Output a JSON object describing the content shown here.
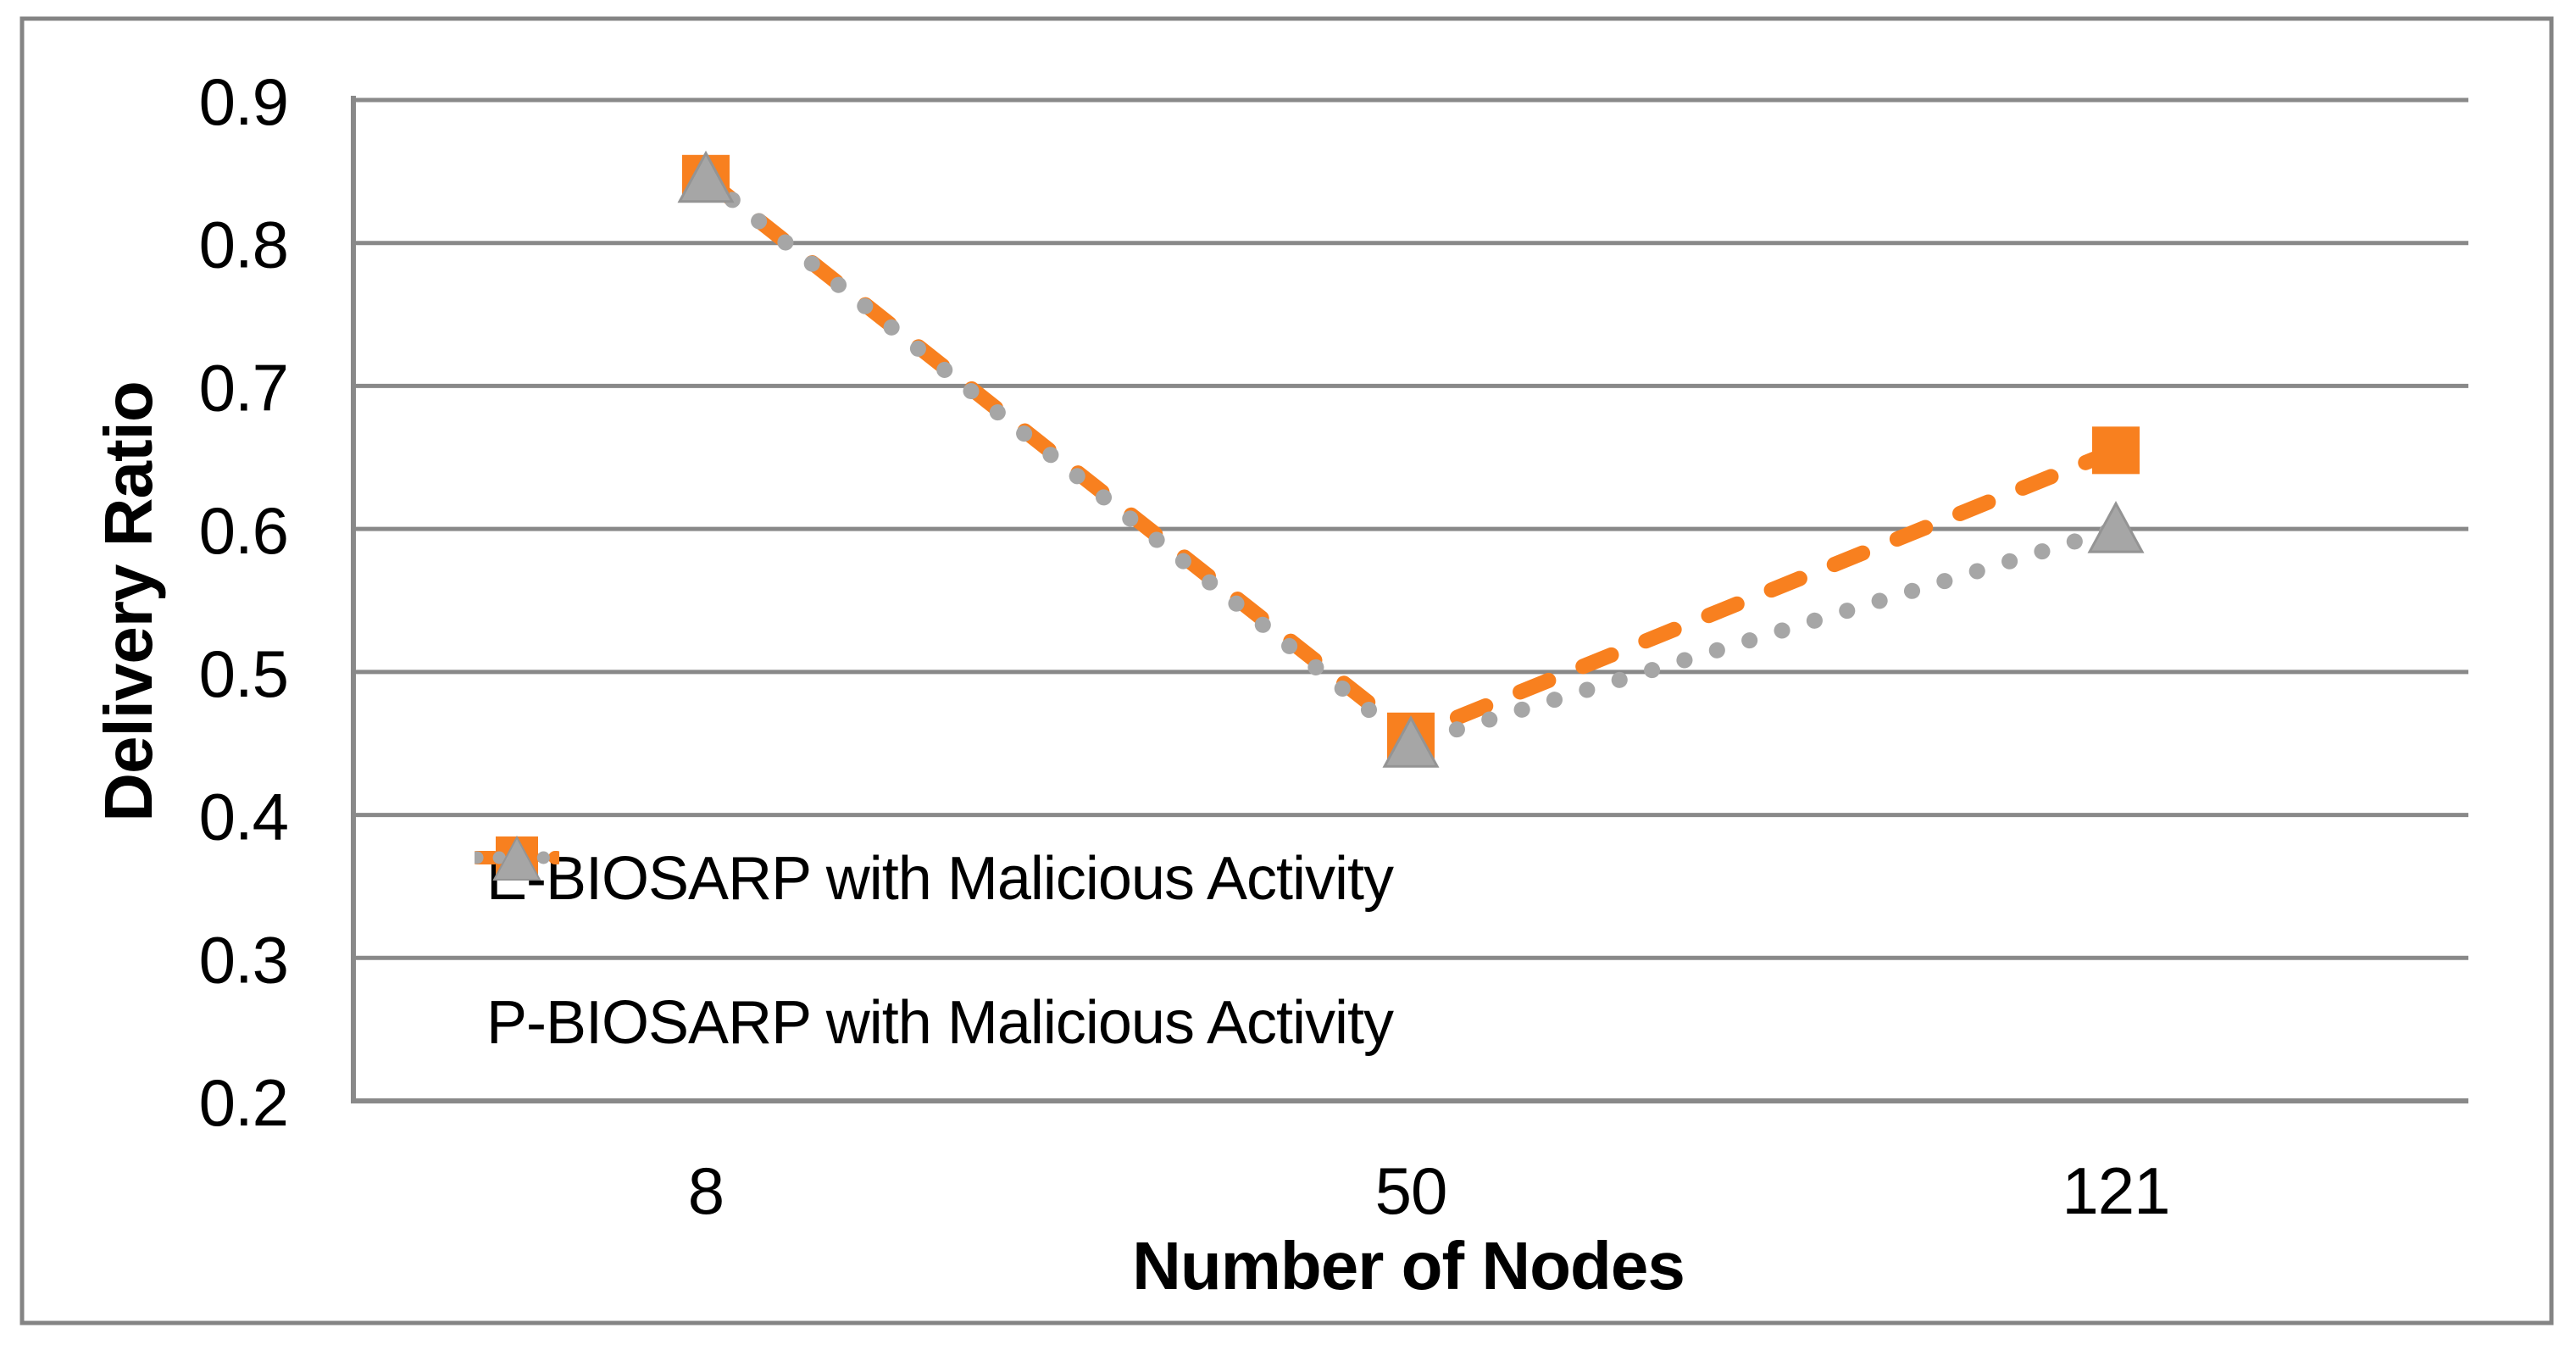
{
  "chart_data": {
    "type": "line",
    "title": "",
    "xlabel": "Number of Nodes",
    "ylabel": "Delivery Ratio",
    "categories": [
      "8",
      "50",
      "121"
    ],
    "series": [
      {
        "name": "E-BIOSARP with Malicious Activity",
        "values": [
          0.845,
          0.455,
          0.655
        ],
        "color": "#F8801F",
        "marker": "square",
        "line_style": "dashed"
      },
      {
        "name": "P-BIOSARP with Malicious Activity",
        "values": [
          0.845,
          0.45,
          0.6
        ],
        "color": "#A6A6A6",
        "marker": "triangle",
        "line_style": "dotted"
      }
    ],
    "ylim": [
      0.2,
      0.9
    ],
    "ytick_labels": [
      "0.9",
      "0.8",
      "0.7",
      "0.6",
      "0.5",
      "0.4",
      "0.3",
      "0.2"
    ],
    "grid": "horizontal",
    "legend_position": "inside bottom-left"
  },
  "style": {
    "gridline_color": "#898989",
    "axis_color": "#898989",
    "border_color": "#848484",
    "text_color": "#000000",
    "background": "#FFFFFF"
  }
}
